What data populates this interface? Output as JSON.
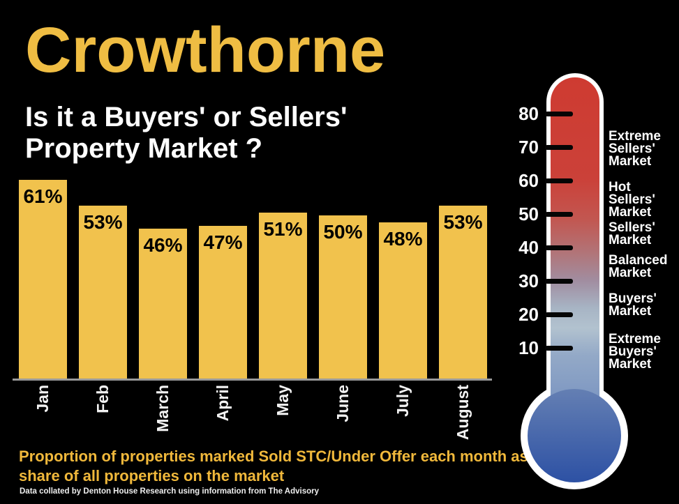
{
  "page_title": "Crowthorne",
  "subtitle": "Is it a Buyers' or Sellers'\nProperty Market ?",
  "footer": {
    "description": "Proportion of properties marked Sold STC/Under Offer each month as a\nshare of all properties on the market",
    "credit": "Data collated by Denton House Research using information from The Advisory"
  },
  "colors": {
    "background": "#000000",
    "title_gold": "#EFBD43",
    "bar_gold": "#F1C24D",
    "bar_label_black": "#000000",
    "footer_gold": "#F0B83B",
    "month_label_white": "#F2F2F2",
    "thermometer_red_top": "#CE3B31",
    "thermometer_blue_bottom": "#2D51A4"
  },
  "chart_data": {
    "type": "bar",
    "title": "Crowthorne",
    "subtitle": "Is it a Buyers' or Sellers' Property Market ?",
    "categories": [
      "Jan",
      "Feb",
      "March",
      "April",
      "May",
      "June",
      "July",
      "August"
    ],
    "values": [
      61,
      53,
      46,
      47,
      51,
      50,
      48,
      53
    ],
    "value_labels": [
      "61%",
      "53%",
      "46%",
      "47%",
      "51%",
      "50%",
      "48%",
      "53%"
    ],
    "unit": "%",
    "data_labels_shown": true,
    "y_axis_shown": false,
    "grid": false,
    "legend": "none",
    "category_label_rotation_deg": 90
  },
  "thermometer": {
    "tick_values": [
      "80",
      "70",
      "60",
      "50",
      "40",
      "30",
      "20",
      "10"
    ],
    "zone_labels": [
      "Extreme\nSellers'\nMarket",
      "Hot\nSellers'\nMarket",
      "Sellers'\nMarket",
      "Balanced\nMarket",
      "Buyers'\nMarket",
      "Extreme\n Buyers'\nMarket"
    ]
  }
}
